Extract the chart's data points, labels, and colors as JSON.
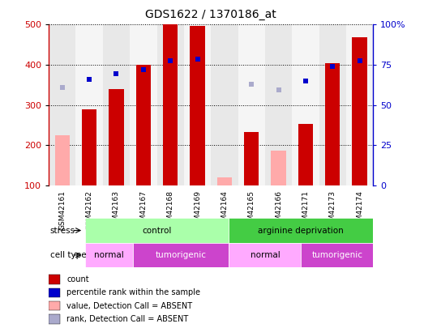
{
  "title": "GDS1622 / 1370186_at",
  "samples": [
    "GSM42161",
    "GSM42162",
    "GSM42163",
    "GSM42167",
    "GSM42168",
    "GSM42169",
    "GSM42164",
    "GSM42165",
    "GSM42166",
    "GSM42171",
    "GSM42173",
    "GSM42174"
  ],
  "count_values": [
    null,
    290,
    340,
    400,
    500,
    497,
    null,
    233,
    null,
    253,
    405,
    468
  ],
  "count_absent_values": [
    224,
    null,
    null,
    null,
    null,
    null,
    120,
    null,
    187,
    null,
    null,
    null
  ],
  "percentile_values": [
    null,
    330,
    347,
    360,
    388,
    392,
    null,
    null,
    null,
    325,
    370,
    388
  ],
  "percentile_absent_values": [
    305,
    null,
    null,
    null,
    null,
    null,
    null,
    315,
    297,
    null,
    null,
    null
  ],
  "ylim": [
    100,
    500
  ],
  "yticks": [
    100,
    200,
    300,
    400,
    500
  ],
  "y2ticks": [
    0,
    25,
    50,
    75,
    100
  ],
  "y2labels": [
    "0",
    "25",
    "50",
    "75",
    "100%"
  ],
  "count_color": "#cc0000",
  "count_absent_color": "#ffaaaa",
  "percentile_color": "#0000cc",
  "percentile_absent_color": "#aaaacc",
  "stress_control_color": "#aaffaa",
  "stress_deprivation_color": "#44cc44",
  "cell_normal_color": "#ffaaff",
  "cell_tumorigenic_color": "#cc44cc",
  "stress_control_label": "control",
  "stress_deprivation_label": "arginine deprivation",
  "cell_normal_label": "normal",
  "cell_tumorigenic_label": "tumorigenic",
  "stress_label": "stress",
  "cell_type_label": "cell type",
  "legend_items": [
    "count",
    "percentile rank within the sample",
    "value, Detection Call = ABSENT",
    "rank, Detection Call = ABSENT"
  ],
  "legend_colors": [
    "#cc0000",
    "#0000cc",
    "#ffaaaa",
    "#aaaacc"
  ],
  "col_bg_even": "#e8e8e8",
  "col_bg_odd": "#f5f5f5"
}
